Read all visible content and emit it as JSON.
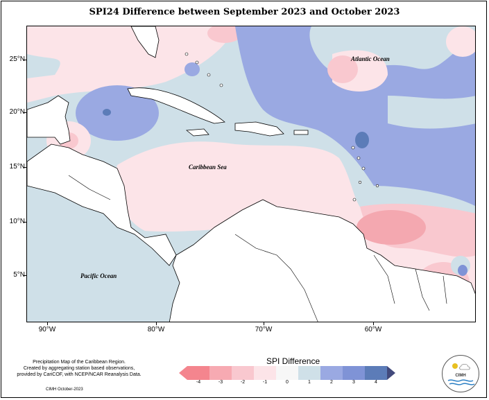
{
  "title": "SPI24 Difference between September 2023 and October 2023",
  "axes": {
    "y_ticks": [
      "25°N",
      "20°N",
      "15°N",
      "10°N",
      "5°N"
    ],
    "x_ticks": [
      "90°W",
      "80°W",
      "70°W",
      "60°W"
    ]
  },
  "labels": {
    "atlantic": "Atlantic Ocean",
    "caribbean": "Caribbean Sea",
    "pacific": "Pacific Ocean"
  },
  "legend": {
    "title": "SPI Difference",
    "ticks": [
      "-4",
      "-3",
      "-2",
      "-1",
      "0",
      "1",
      "2",
      "3",
      "4"
    ],
    "colors": [
      "#f4858e",
      "#f7aab2",
      "#f9c8cf",
      "#fce4e8",
      "#cfe0e8",
      "#9aa9e2",
      "#7f93d6",
      "#5c7cb8",
      "#424a7c"
    ]
  },
  "credit": {
    "line1": "Precipitation Map of the Caribbean Region.",
    "line2": "Created by aggregating station based observations,",
    "line3": "provided by CariCOF, with NCEP/NCAR Reanalysis Data.",
    "date": "CIMH October-2023"
  },
  "logo": {
    "text": "CIMH"
  }
}
